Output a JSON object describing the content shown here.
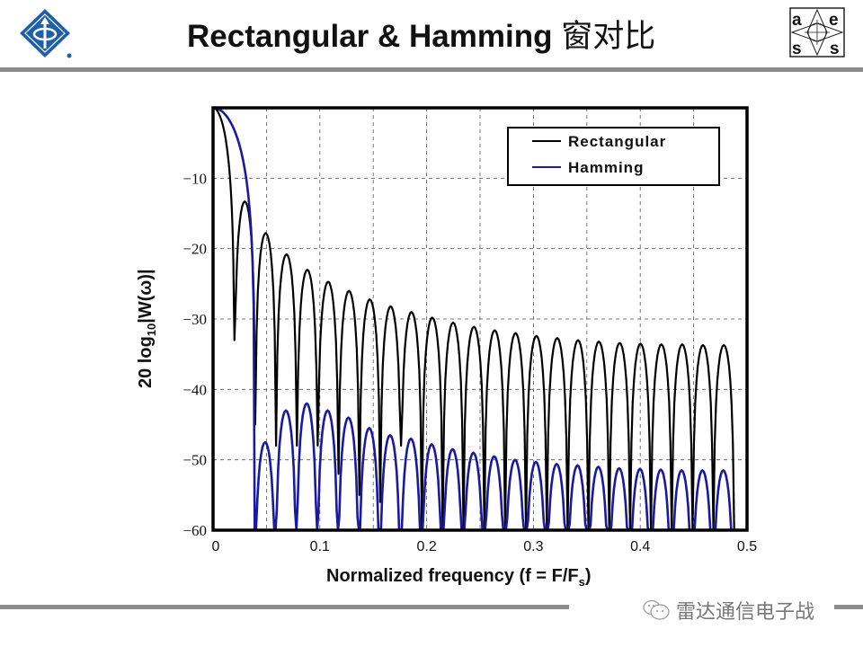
{
  "header": {
    "title_en": "Rectangular & Hamming ",
    "title_cn": "窗对比",
    "left_logo": "ieee-logo-icon",
    "right_logo": "aess-logo-icon",
    "right_logo_letters": [
      "a",
      "e",
      "s",
      "s"
    ]
  },
  "footer": {
    "watermark_icon": "wechat-icon",
    "watermark_text": "雷达通信电子战"
  },
  "colors": {
    "rectangular": "#000000",
    "hamming": "#1a1aa0",
    "grid": "#555555",
    "rule": "#8c8c8c"
  },
  "chart_data": {
    "type": "line",
    "title": "",
    "xlabel": "Normalized frequency (f = F/Fs)",
    "xlabel_main": "Normalized frequency (f = F/F",
    "xlabel_sub": "s",
    "xlabel_end": ")",
    "ylabel_main": "20 log",
    "ylabel_sub": "10",
    "ylabel_end": "|W(ω)|",
    "xlim": [
      0,
      0.5
    ],
    "ylim": [
      -60,
      0
    ],
    "grid": true,
    "x_ticks": [
      "0",
      "0.1",
      "0.2",
      "0.3",
      "0.4",
      "0.5"
    ],
    "y_ticks": [
      "−10",
      "−20",
      "−30",
      "−40",
      "−50",
      "−60"
    ],
    "legend_position": "upper right",
    "legend": [
      "Rectangular",
      "Hamming"
    ],
    "series": [
      {
        "name": "Rectangular",
        "mainlobe_null": 0.02,
        "sidelobe_spacing": 0.0195,
        "sidelobe_peaks_db": [
          -13.3,
          -17.8,
          -20.8,
          -23.0,
          -24.7,
          -26.0,
          -27.2,
          -28.2,
          -29.0,
          -29.8,
          -30.5,
          -31.1,
          -31.6,
          -32.0,
          -32.4,
          -32.7,
          -33.0,
          -33.2,
          -33.4,
          -33.5,
          -33.6,
          -33.6,
          -33.7,
          -33.7
        ],
        "null_floor_db": [
          -33,
          -45,
          -48,
          -48,
          -48,
          -52,
          -55,
          -56,
          -48,
          -60,
          -60,
          -60,
          -60,
          -60,
          -60,
          -60,
          -60,
          -60,
          -60,
          -60,
          -60,
          -60,
          -60,
          -60
        ]
      },
      {
        "name": "Hamming",
        "mainlobe_null": 0.039,
        "sidelobe_spacing": 0.0195,
        "sidelobe_peaks_db": [
          -47.5,
          -43.0,
          -42.0,
          -43.0,
          -44.0,
          -45.5,
          -46.5,
          -47.0,
          -47.8,
          -48.5,
          -49.0,
          -49.5,
          -50.0,
          -50.3,
          -50.6,
          -50.8,
          -51.0,
          -51.2,
          -51.3,
          -51.4,
          -51.5,
          -51.5,
          -51.5
        ]
      }
    ]
  }
}
